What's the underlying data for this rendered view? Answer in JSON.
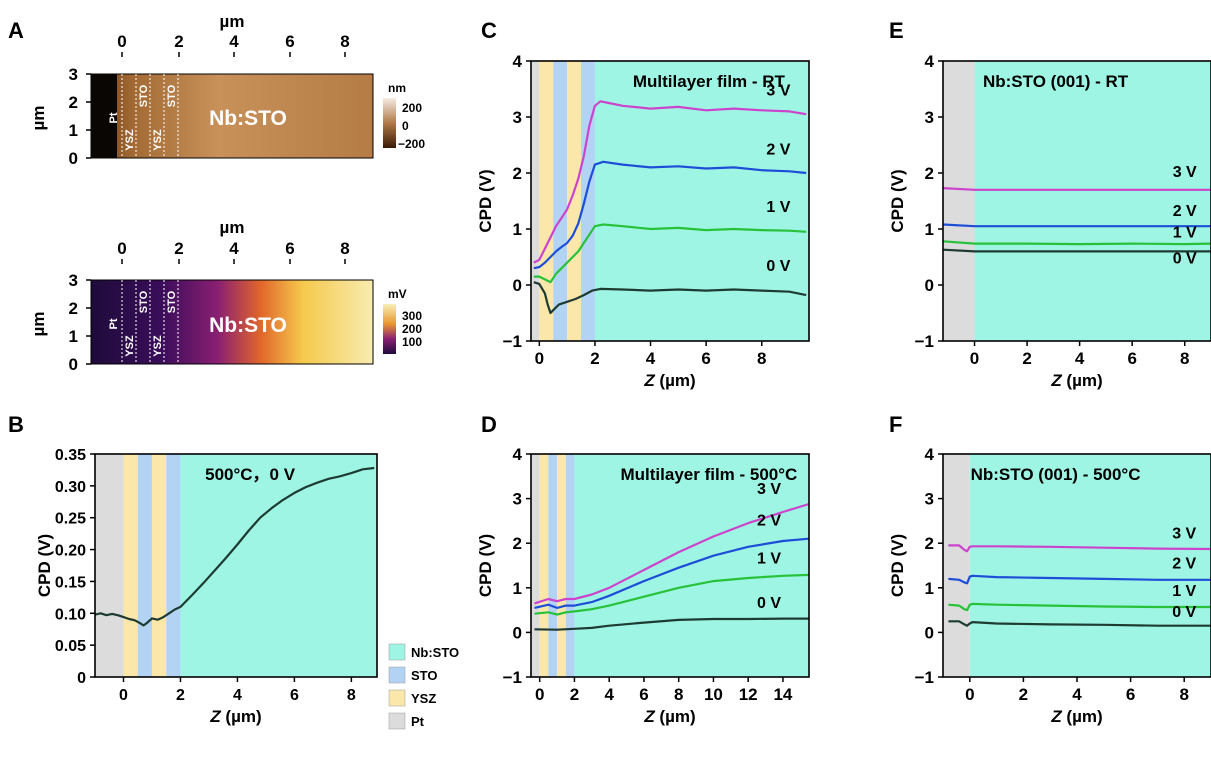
{
  "colors": {
    "nbsto": "#9ff5e3",
    "sto": "#b3d3f5",
    "ysz": "#fbe7aa",
    "pt": "#dcdcdc",
    "v0": "#1d3b33",
    "v1": "#27c23a",
    "v2": "#1d4ed8",
    "v3": "#cc44cc",
    "b_line": "#1d3b33"
  },
  "chart_data": [
    {
      "panel": "A",
      "type": "heatmap",
      "xlabel": "µm",
      "ylabel": "µm",
      "x_ticks": [
        "0",
        "2",
        "4",
        "6",
        "8"
      ],
      "y_ticks": [
        "0",
        "1",
        "2",
        "3"
      ],
      "layer_labels": [
        "Pt",
        "YSZ",
        "STO",
        "YSZ",
        "STO"
      ],
      "region_label": "Nb:STO",
      "colorbar_unit": "nm",
      "colorbar_ticks": [
        "200",
        "0",
        "−200"
      ]
    },
    {
      "panel": "A2",
      "type": "heatmap",
      "xlabel": "µm",
      "ylabel": "µm",
      "x_ticks": [
        "0",
        "2",
        "4",
        "6",
        "8"
      ],
      "y_ticks": [
        "0",
        "1",
        "2",
        "3"
      ],
      "layer_labels": [
        "Pt",
        "YSZ",
        "STO",
        "YSZ",
        "STO"
      ],
      "region_label": "Nb:STO",
      "colorbar_unit": "mV",
      "colorbar_ticks": [
        "300",
        "200",
        "100"
      ]
    },
    {
      "panel": "B",
      "type": "line",
      "annotation": "500°C，0 V",
      "xlabel": "Z (µm)",
      "ylabel": "CPD (V)",
      "xlim": [
        -1,
        8.9
      ],
      "ylim": [
        0,
        0.35
      ],
      "x_ticks": [
        0,
        2,
        4,
        6,
        8
      ],
      "y_ticks": [
        0,
        0.05,
        0.1,
        0.15,
        0.2,
        0.25,
        0.3,
        0.35
      ],
      "y_tick_labels": [
        "0",
        "0.05",
        "0.10",
        "0.15",
        "0.20",
        "0.25",
        "0.30",
        "0.35"
      ],
      "bands": [
        {
          "from": -1,
          "to": 0,
          "layer": "Pt"
        },
        {
          "from": 0,
          "to": 0.5,
          "layer": "YSZ"
        },
        {
          "from": 0.5,
          "to": 1.0,
          "layer": "STO"
        },
        {
          "from": 1.0,
          "to": 1.5,
          "layer": "YSZ"
        },
        {
          "from": 1.5,
          "to": 2.0,
          "layer": "STO"
        },
        {
          "from": 2.0,
          "to": 8.9,
          "layer": "Nb:STO"
        }
      ],
      "series": [
        {
          "label": "",
          "x": [
            -1,
            -0.8,
            -0.6,
            -0.4,
            -0.2,
            0,
            0.2,
            0.4,
            0.6,
            0.7,
            0.8,
            1.0,
            1.2,
            1.4,
            1.6,
            1.8,
            2.0,
            2.4,
            2.8,
            3.2,
            3.6,
            4.0,
            4.4,
            4.8,
            5.2,
            5.6,
            6.0,
            6.4,
            6.8,
            7.2,
            7.6,
            8.0,
            8.4,
            8.8
          ],
          "y": [
            0.098,
            0.1,
            0.097,
            0.099,
            0.097,
            0.094,
            0.091,
            0.089,
            0.084,
            0.081,
            0.084,
            0.092,
            0.09,
            0.094,
            0.1,
            0.106,
            0.11,
            0.128,
            0.147,
            0.167,
            0.187,
            0.208,
            0.23,
            0.25,
            0.265,
            0.278,
            0.289,
            0.298,
            0.305,
            0.311,
            0.315,
            0.32,
            0.326,
            0.328
          ]
        }
      ]
    },
    {
      "panel": "C",
      "type": "line",
      "title": "Multilayer film - RT",
      "xlabel": "Z (µm)",
      "ylabel": "CPD (V)",
      "xlim": [
        -0.3,
        9.7
      ],
      "ylim": [
        -1,
        4
      ],
      "x_ticks": [
        0,
        2,
        4,
        6,
        8
      ],
      "y_ticks": [
        -1,
        0,
        1,
        2,
        3,
        4
      ],
      "bands": [
        {
          "from": -0.3,
          "to": 0,
          "layer": "Pt"
        },
        {
          "from": 0,
          "to": 0.5,
          "layer": "YSZ"
        },
        {
          "from": 0.5,
          "to": 1.0,
          "layer": "STO"
        },
        {
          "from": 1.0,
          "to": 1.5,
          "layer": "YSZ"
        },
        {
          "from": 1.5,
          "to": 2.0,
          "layer": "STO"
        },
        {
          "from": 2.0,
          "to": 9.7,
          "layer": "Nb:STO"
        }
      ],
      "series": [
        {
          "label": "0 V",
          "label_at": [
            8.6,
            0.25
          ],
          "x": [
            -0.2,
            0,
            0.2,
            0.3,
            0.4,
            0.5,
            0.7,
            1.0,
            1.3,
            1.6,
            1.9,
            2.2,
            3,
            4,
            5,
            6,
            7,
            8,
            9,
            9.6
          ],
          "y": [
            0.05,
            0.02,
            -0.15,
            -0.35,
            -0.5,
            -0.45,
            -0.35,
            -0.3,
            -0.25,
            -0.18,
            -0.1,
            -0.07,
            -0.08,
            -0.1,
            -0.08,
            -0.1,
            -0.08,
            -0.1,
            -0.12,
            -0.18
          ]
        },
        {
          "label": "1 V",
          "label_at": [
            8.6,
            1.3
          ],
          "x": [
            -0.2,
            0,
            0.2,
            0.4,
            0.6,
            0.8,
            1.0,
            1.2,
            1.4,
            1.6,
            1.8,
            2.0,
            2.3,
            3,
            4,
            5,
            6,
            7,
            8,
            9,
            9.6
          ],
          "y": [
            0.15,
            0.15,
            0.1,
            0.05,
            0.2,
            0.3,
            0.4,
            0.5,
            0.6,
            0.75,
            0.9,
            1.05,
            1.08,
            1.05,
            1.0,
            1.02,
            0.98,
            1.0,
            0.98,
            0.97,
            0.95
          ]
        },
        {
          "label": "2 V",
          "label_at": [
            8.6,
            2.33
          ],
          "x": [
            -0.2,
            0,
            0.2,
            0.4,
            0.6,
            0.8,
            1.0,
            1.2,
            1.4,
            1.6,
            1.8,
            2.0,
            2.3,
            3,
            4,
            5,
            6,
            7,
            8,
            9,
            9.6
          ],
          "y": [
            0.3,
            0.32,
            0.4,
            0.5,
            0.6,
            0.68,
            0.75,
            0.88,
            1.1,
            1.45,
            1.85,
            2.15,
            2.2,
            2.15,
            2.1,
            2.12,
            2.08,
            2.1,
            2.05,
            2.03,
            2.0
          ]
        },
        {
          "label": "3 V",
          "label_at": [
            8.6,
            3.38
          ],
          "x": [
            -0.2,
            0,
            0.2,
            0.4,
            0.6,
            0.8,
            1.0,
            1.2,
            1.4,
            1.6,
            1.8,
            2.0,
            2.2,
            2.5,
            3,
            4,
            5,
            6,
            7,
            8,
            9,
            9.6
          ],
          "y": [
            0.4,
            0.45,
            0.65,
            0.85,
            1.05,
            1.2,
            1.35,
            1.6,
            1.9,
            2.3,
            2.85,
            3.2,
            3.28,
            3.25,
            3.2,
            3.15,
            3.18,
            3.12,
            3.15,
            3.12,
            3.1,
            3.05
          ]
        }
      ]
    },
    {
      "panel": "D",
      "type": "line",
      "title": "Multilayer film - 500°C",
      "xlabel": "Z (µm)",
      "ylabel": "CPD (V)",
      "xlim": [
        -0.5,
        15.5
      ],
      "ylim": [
        -1,
        4
      ],
      "x_ticks": [
        0,
        2,
        4,
        6,
        8,
        10,
        12,
        14
      ],
      "y_ticks": [
        -1,
        0,
        1,
        2,
        3,
        4
      ],
      "bands": [
        {
          "from": -0.5,
          "to": 0,
          "layer": "Pt"
        },
        {
          "from": 0,
          "to": 0.5,
          "layer": "YSZ"
        },
        {
          "from": 0.5,
          "to": 1.0,
          "layer": "STO"
        },
        {
          "from": 1.0,
          "to": 1.5,
          "layer": "YSZ"
        },
        {
          "from": 1.5,
          "to": 2.0,
          "layer": "STO"
        },
        {
          "from": 2.0,
          "to": 15.5,
          "layer": "Nb:STO"
        }
      ],
      "series": [
        {
          "label": "0 V",
          "label_at": [
            13.2,
            0.55
          ],
          "x": [
            -0.3,
            1,
            2,
            3,
            4,
            6,
            8,
            10,
            12,
            14,
            15.5
          ],
          "y": [
            0.07,
            0.06,
            0.08,
            0.1,
            0.15,
            0.22,
            0.28,
            0.3,
            0.3,
            0.31,
            0.31
          ]
        },
        {
          "label": "1 V",
          "label_at": [
            13.2,
            1.55
          ],
          "x": [
            -0.3,
            0.5,
            1,
            1.5,
            2,
            3,
            4,
            6,
            8,
            10,
            12,
            14,
            15.5
          ],
          "y": [
            0.42,
            0.45,
            0.4,
            0.45,
            0.47,
            0.52,
            0.6,
            0.8,
            1.0,
            1.15,
            1.22,
            1.27,
            1.29
          ]
        },
        {
          "label": "2 V",
          "label_at": [
            13.2,
            2.4
          ],
          "x": [
            -0.3,
            0.5,
            1,
            1.5,
            2,
            3,
            4,
            6,
            8,
            10,
            12,
            14,
            15.5
          ],
          "y": [
            0.55,
            0.62,
            0.55,
            0.6,
            0.6,
            0.68,
            0.82,
            1.15,
            1.45,
            1.72,
            1.92,
            2.05,
            2.1
          ]
        },
        {
          "label": "3 V",
          "label_at": [
            13.2,
            3.1
          ],
          "x": [
            -0.3,
            0.5,
            1,
            1.5,
            2,
            3,
            4,
            6,
            8,
            10,
            12,
            14,
            15.5
          ],
          "y": [
            0.65,
            0.75,
            0.7,
            0.75,
            0.75,
            0.85,
            1.0,
            1.4,
            1.8,
            2.15,
            2.45,
            2.7,
            2.88
          ]
        }
      ]
    },
    {
      "panel": "E",
      "type": "line",
      "title": "Nb:STO (001) - RT",
      "xlabel": "Z (µm)",
      "ylabel": "CPD (V)",
      "xlim": [
        -1.2,
        9
      ],
      "ylim": [
        -1,
        4
      ],
      "x_ticks": [
        0,
        2,
        4,
        6,
        8
      ],
      "y_ticks": [
        -1,
        0,
        1,
        2,
        3,
        4
      ],
      "bands": [
        {
          "from": -1.2,
          "to": 0,
          "layer": "Pt"
        },
        {
          "from": 0,
          "to": 9,
          "layer": "Nb:STO"
        }
      ],
      "series": [
        {
          "label": "0 V",
          "label_at": [
            8.0,
            0.38
          ],
          "x": [
            -1.2,
            0,
            2,
            4,
            6,
            8,
            9
          ],
          "y": [
            0.63,
            0.6,
            0.6,
            0.6,
            0.6,
            0.6,
            0.6
          ]
        },
        {
          "label": "1 V",
          "label_at": [
            8.0,
            0.85
          ],
          "x": [
            -1.2,
            0,
            2,
            4,
            6,
            8,
            9
          ],
          "y": [
            0.78,
            0.74,
            0.74,
            0.73,
            0.74,
            0.73,
            0.74
          ]
        },
        {
          "label": "2 V",
          "label_at": [
            8.0,
            1.23
          ],
          "x": [
            -1.2,
            0,
            2,
            4,
            6,
            8,
            9
          ],
          "y": [
            1.08,
            1.05,
            1.05,
            1.05,
            1.05,
            1.05,
            1.05
          ]
        },
        {
          "label": "3 V",
          "label_at": [
            8.0,
            1.93
          ],
          "x": [
            -1.2,
            0,
            2,
            4,
            6,
            8,
            9
          ],
          "y": [
            1.73,
            1.7,
            1.7,
            1.7,
            1.7,
            1.7,
            1.7
          ]
        }
      ]
    },
    {
      "panel": "F",
      "type": "line",
      "title": "Nb:STO (001) - 500°C",
      "xlabel": "Z (µm)",
      "ylabel": "CPD (V)",
      "xlim": [
        -1.0,
        9
      ],
      "ylim": [
        -1,
        4
      ],
      "x_ticks": [
        0,
        2,
        4,
        6,
        8
      ],
      "y_ticks": [
        -1,
        0,
        1,
        2,
        3,
        4
      ],
      "bands": [
        {
          "from": -1.0,
          "to": 0,
          "layer": "Pt"
        },
        {
          "from": 0,
          "to": 9,
          "layer": "Nb:STO"
        }
      ],
      "series": [
        {
          "label": "0 V",
          "label_at": [
            8.0,
            0.35
          ],
          "x": [
            -0.8,
            -0.4,
            -0.2,
            -0.1,
            0,
            0.1,
            1,
            3,
            5,
            7,
            9
          ],
          "y": [
            0.25,
            0.25,
            0.18,
            0.15,
            0.2,
            0.23,
            0.2,
            0.18,
            0.17,
            0.15,
            0.15
          ]
        },
        {
          "label": "1 V",
          "label_at": [
            8.0,
            0.82
          ],
          "x": [
            -0.8,
            -0.4,
            -0.2,
            -0.1,
            0,
            0.1,
            1,
            3,
            5,
            7,
            9
          ],
          "y": [
            0.62,
            0.6,
            0.52,
            0.5,
            0.62,
            0.64,
            0.62,
            0.6,
            0.58,
            0.57,
            0.57
          ]
        },
        {
          "label": "2 V",
          "label_at": [
            8.0,
            1.43
          ],
          "x": [
            -0.8,
            -0.4,
            -0.2,
            -0.1,
            0,
            0.1,
            1,
            3,
            5,
            7,
            9
          ],
          "y": [
            1.2,
            1.18,
            1.12,
            1.1,
            1.25,
            1.27,
            1.24,
            1.22,
            1.2,
            1.18,
            1.18
          ]
        },
        {
          "label": "3 V",
          "label_at": [
            8.0,
            2.1
          ],
          "x": [
            -0.8,
            -0.4,
            -0.2,
            -0.1,
            0,
            0.1,
            1,
            3,
            5,
            7,
            9
          ],
          "y": [
            1.95,
            1.95,
            1.85,
            1.82,
            1.92,
            1.93,
            1.93,
            1.92,
            1.9,
            1.88,
            1.87
          ]
        }
      ]
    }
  ],
  "panel_labels": [
    "A",
    "B",
    "C",
    "D",
    "E",
    "F"
  ],
  "legend": {
    "items": [
      {
        "label": "Nb:STO",
        "layer": "Nb:STO"
      },
      {
        "label": "STO",
        "layer": "STO"
      },
      {
        "label": "YSZ",
        "layer": "YSZ"
      },
      {
        "label": "Pt",
        "layer": "Pt"
      }
    ]
  }
}
